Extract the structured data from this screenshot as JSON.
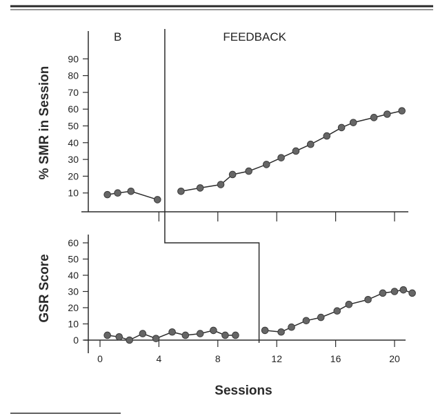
{
  "colors": {
    "ink": "#2a2a2a",
    "marker": "#666666",
    "background": "#ffffff"
  },
  "chart_data": [
    {
      "type": "line",
      "panel": "top",
      "ylabel": "% SMR in Session",
      "ylim": [
        0,
        100
      ],
      "y_ticks": [
        10,
        20,
        30,
        40,
        50,
        60,
        70,
        80,
        90
      ],
      "xlim": [
        0,
        22
      ],
      "x_ticks": [
        4,
        8,
        12,
        16,
        20
      ],
      "phase_labels": [
        {
          "text": "B",
          "x": 1.2
        },
        {
          "text": "FEEDBACK",
          "x": 10.5
        }
      ],
      "phase_change_x": 4.4,
      "series": [
        {
          "segment": "baseline",
          "x": [
            0.5,
            1.2,
            2.1,
            3.9
          ],
          "y": [
            9,
            10,
            11,
            6
          ]
        },
        {
          "segment": "feedback",
          "x": [
            5.5,
            6.8,
            8.2,
            9.0,
            10.1,
            11.3,
            12.3,
            13.3,
            14.3,
            15.4,
            16.4,
            17.2,
            18.6,
            19.5,
            20.5
          ],
          "y": [
            11,
            13,
            15,
            21,
            23,
            27,
            31,
            35,
            39,
            44,
            49,
            52,
            55,
            57,
            59
          ]
        }
      ]
    },
    {
      "type": "line",
      "panel": "bottom",
      "ylabel": "GSR Score",
      "ylim": [
        0,
        70
      ],
      "y_ticks": [
        0,
        10,
        20,
        30,
        40,
        50,
        60
      ],
      "xlabel": "Sessions",
      "xlim": [
        -1,
        22
      ],
      "x_ticks": [
        0,
        4,
        8,
        12,
        16,
        20
      ],
      "x_tick_labels": [
        "0",
        "4",
        "8",
        "12",
        "16",
        "20"
      ],
      "phase_change": {
        "x_start": 4.4,
        "x_end": 10.8,
        "y_level": 60
      },
      "series": [
        {
          "segment": "baseline",
          "x": [
            0.5,
            1.3,
            2.0,
            2.9,
            3.8,
            4.9,
            5.8,
            6.8,
            7.7,
            8.5,
            9.2
          ],
          "y": [
            3,
            2,
            0,
            4,
            1,
            5,
            3,
            4,
            6,
            3,
            3
          ]
        },
        {
          "segment": "feedback",
          "x": [
            11.2,
            12.3,
            13.0,
            14.0,
            15.0,
            16.1,
            16.9,
            18.2,
            19.2,
            20.0,
            20.6,
            21.2
          ],
          "y": [
            6,
            5,
            8,
            12,
            14,
            18,
            22,
            25,
            29,
            30,
            31,
            29
          ]
        }
      ]
    }
  ]
}
